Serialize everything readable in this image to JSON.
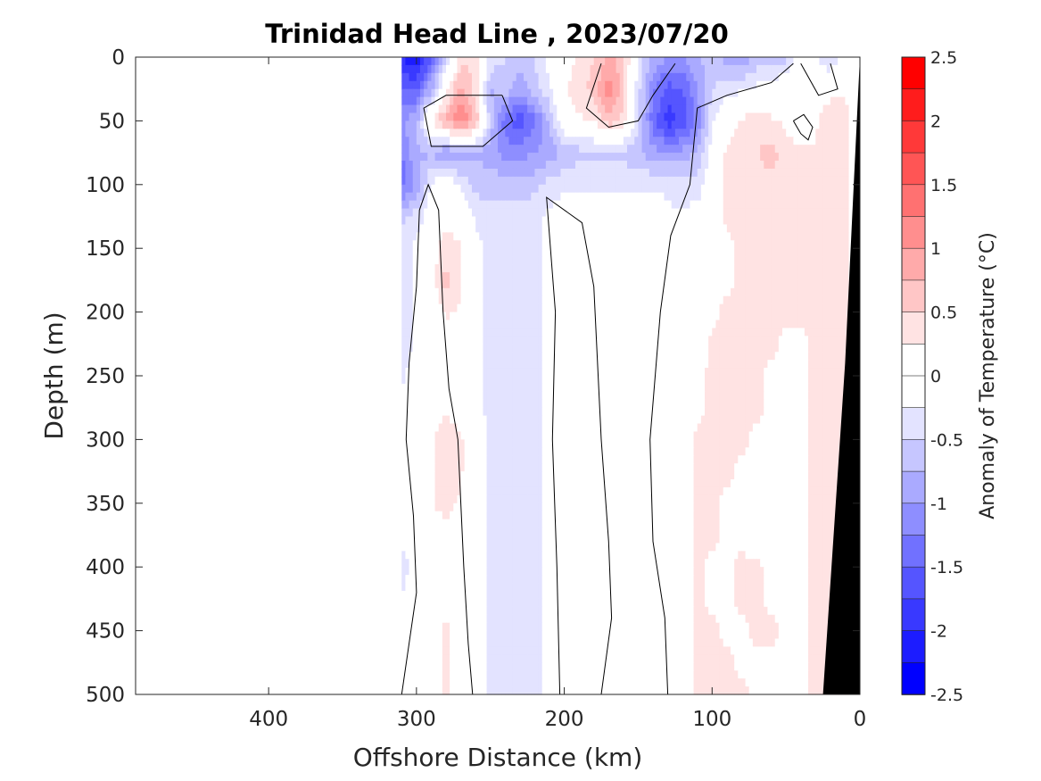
{
  "chart_data": {
    "type": "heatmap",
    "subtype": "filled-contour",
    "title": "Trinidad Head Line , 2023/07/20",
    "xlabel": "Offshore Distance (km)",
    "ylabel": "Depth (m)",
    "xlim": [
      490,
      0
    ],
    "ylim": [
      0,
      500
    ],
    "x_reversed": true,
    "y_reversed": true,
    "xticks": [
      400,
      300,
      200,
      100,
      0
    ],
    "yticks": [
      0,
      50,
      100,
      150,
      200,
      250,
      300,
      350,
      400,
      450,
      500
    ],
    "xtick_labels": [
      "400",
      "300",
      "200",
      "100",
      "0"
    ],
    "ytick_labels": [
      "0",
      "50",
      "100",
      "150",
      "200",
      "250",
      "300",
      "350",
      "400",
      "450",
      "500"
    ],
    "data_start_x_km": 310,
    "colorbar": {
      "label": "Anomaly of Temperature (°C)",
      "min": -2.5,
      "max": 2.5,
      "step": 0.25,
      "ticks": [
        2.5,
        2,
        1.5,
        1,
        0.5,
        0,
        -0.5,
        -1,
        -1.5,
        -2,
        -2.5
      ],
      "tick_labels": [
        "2.5",
        "2",
        "1.5",
        "1",
        "0.5",
        "0",
        "-0.5",
        "-1",
        "-1.5",
        "-2",
        "-2.5"
      ]
    },
    "x_columns_km": [
      310,
      300,
      290,
      280,
      270,
      260,
      250,
      240,
      230,
      220,
      210,
      200,
      190,
      180,
      170,
      160,
      150,
      140,
      130,
      120,
      110,
      100,
      90,
      80,
      70,
      60,
      50,
      40,
      30,
      20,
      10,
      0
    ],
    "depth_rows_m": [
      0,
      25,
      50,
      75,
      100,
      125,
      150,
      175,
      200,
      225,
      250,
      275,
      300,
      325,
      350,
      375,
      400,
      425,
      450,
      475,
      500
    ],
    "anomaly_grid": [
      [
        -2.0,
        -2.2,
        -1.5,
        -0.6,
        0.4,
        0.5,
        -0.3,
        -0.5,
        -0.6,
        -0.5,
        -0.1,
        0.1,
        0.3,
        0.5,
        0.8,
        0.6,
        -0.3,
        -0.8,
        -1.0,
        -1.0,
        -0.8,
        -0.6,
        -0.9,
        -1.0,
        -0.7,
        -0.6,
        -0.6,
        0.2,
        -0.2,
        -0.5,
        0.0,
        0.0
      ],
      [
        -1.5,
        -1.6,
        -0.8,
        0.2,
        0.8,
        0.4,
        -0.8,
        -0.6,
        -0.9,
        -0.6,
        -0.3,
        0.2,
        0.4,
        0.6,
        1.2,
        0.6,
        -0.4,
        -1.2,
        -1.6,
        -1.5,
        -1.0,
        -0.5,
        -0.4,
        -0.3,
        -0.2,
        -0.1,
        0.0,
        0.1,
        0.0,
        0.1,
        0.2,
        0.0
      ],
      [
        -1.0,
        -0.8,
        0.3,
        0.8,
        1.3,
        0.7,
        -0.6,
        -1.4,
        -1.7,
        -1.3,
        -0.7,
        0.1,
        0.2,
        0.3,
        0.7,
        0.4,
        -0.4,
        -1.4,
        -1.9,
        -1.7,
        -1.2,
        -0.3,
        0.1,
        0.3,
        0.4,
        0.3,
        0.2,
        -0.1,
        0.2,
        0.5,
        0.4,
        0.0
      ],
      [
        -1.3,
        -0.8,
        -0.8,
        -1.0,
        -0.9,
        -0.8,
        -0.9,
        -1.1,
        -1.1,
        -1.0,
        -0.9,
        -0.7,
        -0.6,
        -0.6,
        -0.6,
        -0.6,
        -0.7,
        -0.9,
        -1.0,
        -0.9,
        -0.7,
        -0.1,
        0.3,
        0.4,
        0.5,
        0.6,
        0.4,
        0.3,
        0.3,
        0.4,
        0.3,
        0.0
      ],
      [
        -1.4,
        -0.9,
        -0.2,
        0.0,
        -0.3,
        -0.6,
        -0.6,
        -0.6,
        -0.6,
        -0.6,
        -0.4,
        -0.3,
        -0.3,
        -0.3,
        -0.3,
        -0.3,
        -0.3,
        -0.3,
        -0.3,
        -0.4,
        -0.4,
        0.0,
        0.3,
        0.4,
        0.4,
        0.4,
        0.4,
        0.3,
        0.3,
        0.3,
        0.3,
        0.0
      ],
      [
        -0.6,
        -0.4,
        -0.1,
        0.1,
        0.0,
        -0.3,
        -0.4,
        -0.4,
        -0.4,
        -0.3,
        -0.2,
        -0.1,
        0.0,
        0.0,
        0.0,
        0.1,
        0.0,
        -0.1,
        -0.2,
        -0.2,
        -0.1,
        0.0,
        0.3,
        0.3,
        0.3,
        0.3,
        0.4,
        0.3,
        0.3,
        0.3,
        0.3,
        0.0
      ],
      [
        -0.4,
        -0.2,
        0.1,
        0.4,
        0.3,
        -0.2,
        -0.3,
        -0.4,
        -0.4,
        -0.3,
        -0.2,
        0.0,
        0.1,
        0.1,
        0.1,
        0.1,
        0.0,
        -0.1,
        -0.1,
        -0.1,
        -0.1,
        0.1,
        0.2,
        0.3,
        0.3,
        0.3,
        0.4,
        0.3,
        0.3,
        0.3,
        0.3,
        0.0
      ],
      [
        -0.4,
        -0.2,
        0.1,
        0.6,
        0.3,
        -0.2,
        -0.3,
        -0.3,
        -0.3,
        -0.3,
        -0.2,
        0.0,
        0.1,
        0.1,
        0.1,
        0.1,
        0.0,
        0.0,
        -0.1,
        -0.1,
        0.0,
        0.1,
        0.2,
        0.3,
        0.3,
        0.3,
        0.4,
        0.3,
        0.3,
        0.3,
        0.3,
        0.0
      ],
      [
        -0.4,
        -0.2,
        0.0,
        0.3,
        0.2,
        -0.2,
        -0.3,
        -0.3,
        -0.3,
        -0.3,
        -0.2,
        0.0,
        0.1,
        0.1,
        0.1,
        0.1,
        0.0,
        0.0,
        -0.1,
        -0.1,
        0.1,
        0.2,
        0.3,
        0.3,
        0.3,
        0.3,
        0.3,
        0.3,
        0.3,
        0.3,
        0.3,
        0.0
      ],
      [
        -0.4,
        -0.2,
        0.0,
        0.1,
        0.0,
        -0.2,
        -0.3,
        -0.3,
        -0.3,
        -0.3,
        -0.2,
        0.0,
        0.1,
        0.1,
        0.1,
        0.1,
        0.0,
        0.0,
        -0.1,
        -0.1,
        0.1,
        0.3,
        0.3,
        0.3,
        0.3,
        0.3,
        0.2,
        0.2,
        0.3,
        0.3,
        0.3,
        0.0
      ],
      [
        -0.3,
        -0.1,
        0.0,
        0.1,
        0.0,
        -0.2,
        -0.3,
        -0.3,
        -0.3,
        -0.3,
        -0.2,
        0.0,
        0.1,
        0.1,
        0.1,
        0.1,
        0.0,
        0.0,
        -0.1,
        0.0,
        0.2,
        0.3,
        0.3,
        0.3,
        0.3,
        0.2,
        0.2,
        0.2,
        0.3,
        0.3,
        0.3,
        0.0
      ],
      [
        -0.2,
        0.0,
        0.1,
        0.2,
        0.1,
        -0.2,
        -0.3,
        -0.3,
        -0.3,
        -0.3,
        -0.2,
        0.0,
        0.1,
        0.1,
        0.1,
        0.1,
        0.0,
        0.0,
        -0.1,
        0.0,
        0.2,
        0.3,
        0.3,
        0.3,
        0.3,
        0.2,
        0.2,
        0.2,
        0.3,
        0.3,
        0.3,
        0.0
      ],
      [
        -0.2,
        0.0,
        0.2,
        0.4,
        0.3,
        -0.1,
        -0.3,
        -0.3,
        -0.3,
        -0.3,
        -0.2,
        0.0,
        0.1,
        0.1,
        0.1,
        0.1,
        0.0,
        0.0,
        -0.1,
        0.1,
        0.3,
        0.3,
        0.3,
        0.3,
        0.2,
        0.1,
        0.1,
        0.2,
        0.3,
        0.3,
        0.3,
        0.0
      ],
      [
        -0.2,
        0.0,
        0.2,
        0.5,
        0.3,
        -0.1,
        -0.3,
        -0.3,
        -0.3,
        -0.3,
        -0.2,
        0.0,
        0.1,
        0.1,
        0.1,
        0.1,
        0.0,
        0.0,
        -0.1,
        0.1,
        0.3,
        0.3,
        0.3,
        0.2,
        0.2,
        0.1,
        0.1,
        0.2,
        0.3,
        0.3,
        0.3,
        0.0
      ],
      [
        -0.2,
        0.0,
        0.2,
        0.4,
        0.2,
        -0.1,
        -0.3,
        -0.3,
        -0.3,
        -0.3,
        -0.2,
        0.0,
        0.1,
        0.1,
        0.1,
        0.1,
        0.0,
        0.0,
        -0.1,
        0.1,
        0.3,
        0.3,
        0.2,
        0.2,
        0.1,
        0.1,
        0.1,
        0.2,
        0.3,
        0.3,
        0.3,
        0.0
      ],
      [
        -0.1,
        0.0,
        0.1,
        0.1,
        0.0,
        -0.1,
        -0.3,
        -0.3,
        -0.3,
        -0.3,
        -0.2,
        0.0,
        0.1,
        0.1,
        0.1,
        0.1,
        0.0,
        0.0,
        -0.1,
        0.1,
        0.3,
        0.3,
        0.2,
        0.2,
        0.1,
        0.1,
        0.1,
        0.2,
        0.3,
        0.3,
        0.3,
        0.0
      ],
      [
        -0.4,
        -0.1,
        0.0,
        0.0,
        0.0,
        -0.1,
        -0.3,
        -0.3,
        -0.3,
        -0.3,
        -0.2,
        0.0,
        0.1,
        0.1,
        0.1,
        0.1,
        0.0,
        0.0,
        -0.1,
        0.1,
        0.3,
        0.2,
        0.2,
        0.3,
        0.3,
        0.2,
        0.1,
        0.2,
        0.3,
        0.3,
        0.3,
        0.0
      ],
      [
        -0.2,
        -0.1,
        0.0,
        0.1,
        0.0,
        -0.1,
        -0.3,
        -0.3,
        -0.3,
        -0.3,
        -0.2,
        0.0,
        0.1,
        0.1,
        0.1,
        0.1,
        0.0,
        0.0,
        -0.1,
        0.1,
        0.3,
        0.2,
        0.2,
        0.3,
        0.3,
        0.2,
        0.2,
        0.2,
        0.3,
        0.3,
        0.3,
        0.0
      ],
      [
        -0.1,
        0.0,
        0.1,
        0.3,
        0.1,
        -0.1,
        -0.3,
        -0.3,
        -0.3,
        -0.3,
        -0.2,
        0.0,
        0.1,
        0.1,
        0.1,
        0.1,
        0.0,
        0.0,
        -0.1,
        0.1,
        0.3,
        0.3,
        0.2,
        0.2,
        0.3,
        0.3,
        0.2,
        0.2,
        0.3,
        0.3,
        0.3,
        0.0
      ],
      [
        -0.1,
        0.0,
        0.1,
        0.3,
        0.1,
        -0.1,
        -0.3,
        -0.3,
        -0.3,
        -0.3,
        -0.2,
        0.0,
        0.1,
        0.1,
        0.1,
        0.1,
        0.0,
        0.0,
        -0.1,
        0.1,
        0.3,
        0.3,
        0.3,
        0.2,
        0.2,
        0.2,
        0.2,
        0.2,
        0.3,
        0.3,
        0.3,
        0.0
      ],
      [
        -0.1,
        0.0,
        0.1,
        0.3,
        0.1,
        -0.1,
        -0.3,
        -0.3,
        -0.3,
        -0.3,
        -0.2,
        0.0,
        0.1,
        0.1,
        0.1,
        0.1,
        0.0,
        0.0,
        -0.1,
        0.1,
        0.3,
        0.3,
        0.3,
        0.3,
        0.2,
        0.2,
        0.2,
        0.2,
        0.3,
        0.3,
        0.3,
        0.0
      ]
    ],
    "seafloor_profile": [
      [
        25,
        500
      ],
      [
        10,
        240
      ],
      [
        0,
        0
      ]
    ],
    "seafloor_color": "#000000"
  }
}
